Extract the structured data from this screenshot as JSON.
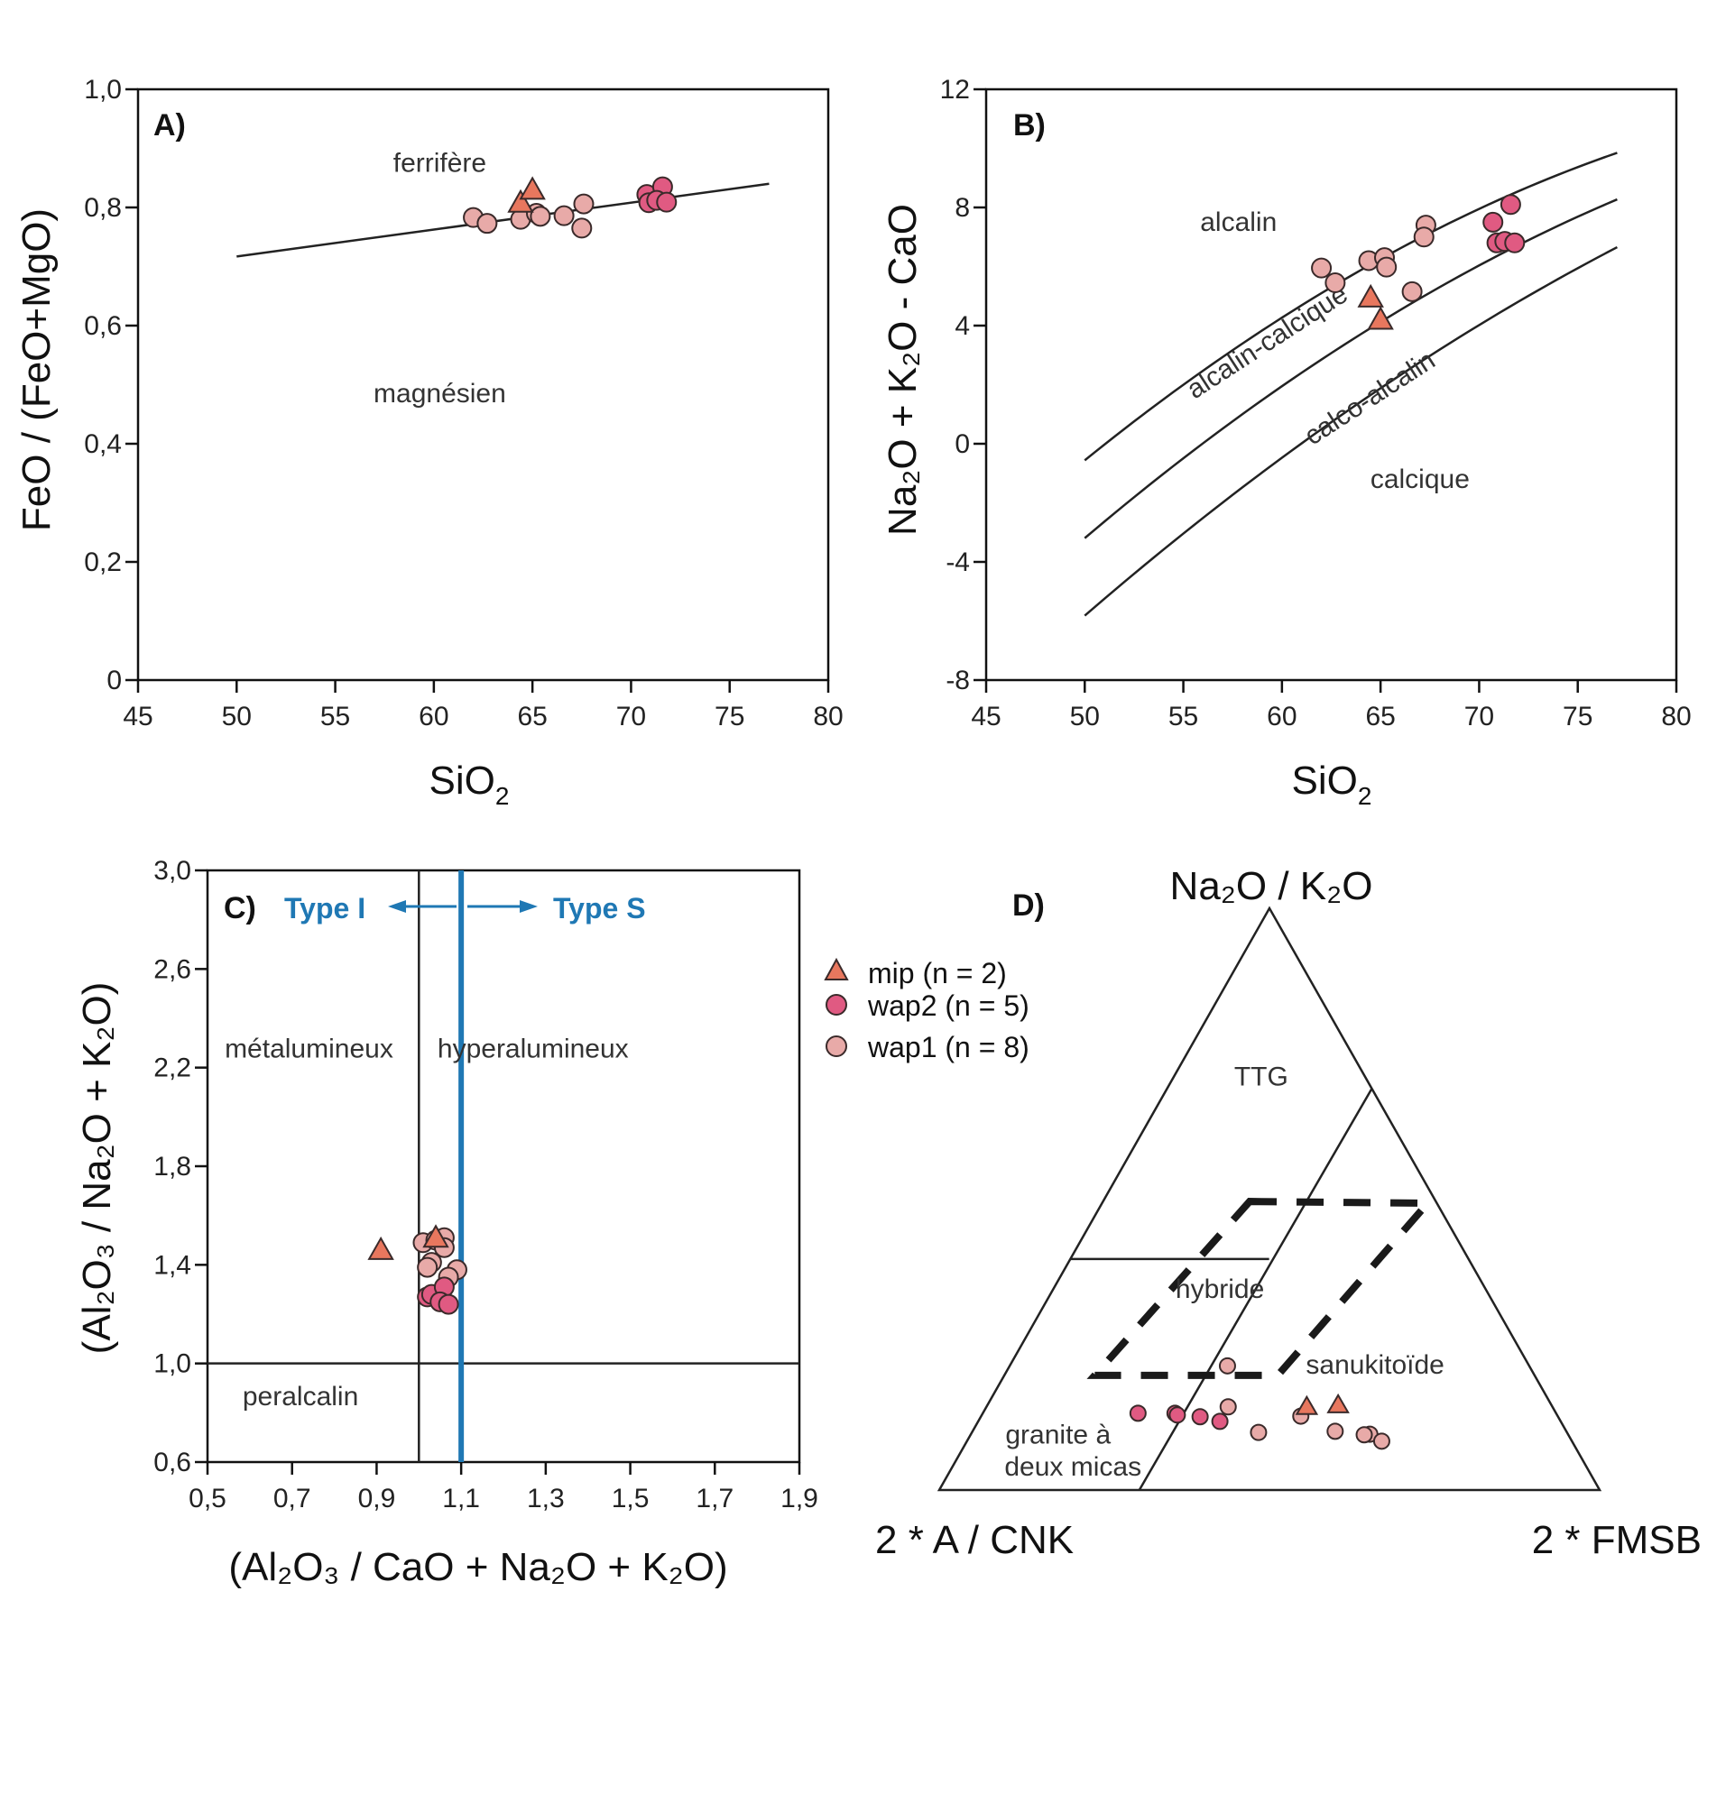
{
  "legend": [
    {
      "key": "mip",
      "label": "mip (n = 2)",
      "marker": "triangle",
      "color": "#e8775e"
    },
    {
      "key": "wap2",
      "label": "wap2 (n = 5)",
      "marker": "circle",
      "color": "#e05a82"
    },
    {
      "key": "wap1",
      "label": "wap1 (n = 8)",
      "marker": "circle",
      "color": "#e8aaa8"
    }
  ],
  "colors": {
    "outline": "#3a2a2a",
    "axis": "#111111",
    "boundary": "#222222",
    "type_divider": "#1f78b4"
  },
  "chart_data": [
    {
      "id": "A",
      "type": "scatter",
      "panel_label": "A)",
      "xlabel": "SiO",
      "xlabel_sub": "2",
      "ylabel": "FeO / (FeO+MgO)",
      "xlim": [
        45,
        80
      ],
      "ylim": [
        0,
        1.0
      ],
      "xticks": [
        45,
        50,
        55,
        60,
        65,
        70,
        75,
        80
      ],
      "xtick_labels": [
        "45",
        "50",
        "55",
        "60",
        "65",
        "70",
        "75",
        "80"
      ],
      "yticks": [
        0,
        0.2,
        0.4,
        0.6,
        0.8,
        1.0
      ],
      "ytick_labels": [
        "0",
        "0,2",
        "0,4",
        "0,6",
        "0,8",
        "1,0"
      ],
      "grid": false,
      "boundaries": [
        {
          "name": "ferroan-magnesian-line",
          "points": [
            [
              50,
              0.717
            ],
            [
              77,
              0.84
            ]
          ]
        }
      ],
      "fields": [
        {
          "label": "ferrifère",
          "x": 60.3,
          "y": 0.86
        },
        {
          "label": "magnésien",
          "x": 60.3,
          "y": 0.47
        }
      ],
      "series": [
        {
          "name": "wap1",
          "points": [
            [
              62.0,
              0.783
            ],
            [
              62.7,
              0.773
            ],
            [
              64.4,
              0.78
            ],
            [
              65.2,
              0.79
            ],
            [
              65.4,
              0.785
            ],
            [
              66.6,
              0.786
            ],
            [
              67.6,
              0.806
            ],
            [
              67.5,
              0.765
            ]
          ]
        },
        {
          "name": "wap2",
          "points": [
            [
              70.8,
              0.822
            ],
            [
              70.9,
              0.808
            ],
            [
              71.6,
              0.835
            ],
            [
              71.3,
              0.812
            ],
            [
              71.8,
              0.809
            ]
          ]
        },
        {
          "name": "mip",
          "points": [
            [
              64.4,
              0.808
            ],
            [
              65.0,
              0.83
            ]
          ]
        }
      ]
    },
    {
      "id": "B",
      "type": "scatter",
      "panel_label": "B)",
      "xlabel": "SiO",
      "xlabel_sub": "2",
      "ylabel": "Na₂O + K₂O - CaO",
      "xlim": [
        45,
        80
      ],
      "ylim": [
        -8,
        12
      ],
      "xticks": [
        45,
        50,
        55,
        60,
        65,
        70,
        75,
        80
      ],
      "xtick_labels": [
        "45",
        "50",
        "55",
        "60",
        "65",
        "70",
        "75",
        "80"
      ],
      "yticks": [
        -8,
        -4,
        0,
        4,
        8,
        12
      ],
      "ytick_labels": [
        "-8",
        "-4",
        "0",
        "4",
        "8",
        "12"
      ],
      "grid": false,
      "boundaries": [
        {
          "name": "alkalic-alkalicalcic",
          "coef": [
            -41.86,
            1.112,
            -0.00572
          ],
          "x_range": [
            50,
            77
          ]
        },
        {
          "name": "alkalicalcic-calcalkalic",
          "coef": [
            -44.72,
            1.094,
            -0.00527
          ],
          "x_range": [
            50,
            77
          ]
        },
        {
          "name": "calcalkalic-calcic",
          "coef": [
            -45.36,
            1.0043,
            -0.00427
          ],
          "x_range": [
            50,
            77
          ]
        }
      ],
      "fields": [
        {
          "label": "alcalin",
          "x": 57.8,
          "y": 7.2,
          "angle": 0
        },
        {
          "label": "alcalin-calcique",
          "x": 59.5,
          "y": 3.2,
          "angle": -33
        },
        {
          "label": "calco-alcalin",
          "x": 64.7,
          "y": 1.3,
          "angle": -33
        },
        {
          "label": "calcique",
          "x": 67.0,
          "y": -1.5,
          "angle": 0
        }
      ],
      "series": [
        {
          "name": "wap1",
          "points": [
            [
              62.0,
              5.95
            ],
            [
              62.7,
              5.45
            ],
            [
              64.4,
              6.2
            ],
            [
              65.2,
              6.3
            ],
            [
              65.3,
              5.98
            ],
            [
              66.6,
              5.15
            ],
            [
              67.3,
              7.4
            ],
            [
              67.2,
              7.0
            ]
          ]
        },
        {
          "name": "wap2",
          "points": [
            [
              70.7,
              7.5
            ],
            [
              71.6,
              8.1
            ],
            [
              70.9,
              6.8
            ],
            [
              71.3,
              6.85
            ],
            [
              71.8,
              6.8
            ]
          ]
        },
        {
          "name": "mip",
          "points": [
            [
              64.5,
              4.95
            ],
            [
              65.0,
              4.2
            ]
          ]
        }
      ]
    },
    {
      "id": "C",
      "type": "scatter",
      "panel_label": "C)",
      "xlabel": "(Al₂O₃ / CaO + Na₂O + K₂O)",
      "ylabel": "(Al₂O₃ / Na₂O + K₂O)",
      "xlim": [
        0.5,
        1.9
      ],
      "ylim": [
        0.6,
        3.0
      ],
      "xticks": [
        0.5,
        0.7,
        0.9,
        1.1,
        1.3,
        1.5,
        1.7,
        1.9
      ],
      "xtick_labels": [
        "0,5",
        "0,7",
        "0,9",
        "1,1",
        "1,3",
        "1,5",
        "1,7",
        "1,9"
      ],
      "yticks": [
        0.6,
        1.0,
        1.4,
        1.8,
        2.2,
        2.6,
        3.0
      ],
      "ytick_labels": [
        "0,6",
        "1,0",
        "1,4",
        "1,8",
        "2,2",
        "2,6",
        "3,0"
      ],
      "grid": false,
      "boundaries": [
        {
          "name": "acnk-1",
          "orientation": "vertical",
          "value": 1.0
        },
        {
          "name": "ank-1",
          "orientation": "horizontal",
          "value": 1.0
        },
        {
          "name": "type-divider",
          "orientation": "vertical",
          "value": 1.1,
          "color": "#1f78b4"
        }
      ],
      "type_labels": {
        "left": "Type I",
        "right": "Type S"
      },
      "fields": [
        {
          "label": "métalumineux",
          "x": 0.74,
          "y": 2.24
        },
        {
          "label": "hyperalumineux",
          "x": 1.27,
          "y": 2.24
        },
        {
          "label": "peralcalin",
          "x": 0.72,
          "y": 0.83
        }
      ],
      "series": [
        {
          "name": "wap1",
          "points": [
            [
              1.01,
              1.49
            ],
            [
              1.04,
              1.5
            ],
            [
              1.06,
              1.51
            ],
            [
              1.06,
              1.47
            ],
            [
              1.03,
              1.41
            ],
            [
              1.02,
              1.39
            ],
            [
              1.09,
              1.38
            ],
            [
              1.07,
              1.35
            ]
          ]
        },
        {
          "name": "wap2",
          "points": [
            [
              1.02,
              1.27
            ],
            [
              1.03,
              1.28
            ],
            [
              1.06,
              1.31
            ],
            [
              1.05,
              1.25
            ],
            [
              1.07,
              1.24
            ]
          ]
        },
        {
          "name": "mip",
          "points": [
            [
              0.91,
              1.46
            ],
            [
              1.04,
              1.51
            ]
          ]
        }
      ]
    },
    {
      "id": "D",
      "type": "scatter",
      "subtype": "ternary",
      "panel_label": "D)",
      "vertices": {
        "top": "Na₂O / K₂O",
        "left": "2 * A / CNK",
        "right": "2 * FMSB"
      },
      "coordinate_order": [
        "top",
        "left",
        "right"
      ],
      "grid": false,
      "boundaries": [
        {
          "name": "ttg-lower",
          "points": [
            [
              0.397,
              0.603,
              0.0
            ],
            [
              0.397,
              0.302,
              0.301
            ]
          ]
        },
        {
          "name": "sanukitoid-boundary",
          "points": [
            [
              0.0,
              0.697,
              0.303
            ],
            [
              0.69,
              0.0,
              0.31
            ]
          ]
        }
      ],
      "dashed_field": {
        "name": "hybrid-field",
        "points": [
          [
            0.496,
            0.282,
            0.222
          ],
          [
            0.493,
            0.014,
            0.493
          ],
          [
            0.197,
            0.389,
            0.414
          ],
          [
            0.197,
            0.666,
            0.137
          ]
        ]
      },
      "fields": [
        {
          "label": "TTG",
          "t": 0.695,
          "l": 0.165,
          "r": 0.14
        },
        {
          "label": "hybride",
          "t": 0.33,
          "l": 0.41,
          "r": 0.26
        },
        {
          "label": "sanukitoïde",
          "t": 0.2,
          "l": 0.24,
          "r": 0.56
        },
        {
          "label": "granite à",
          "t": 0.08,
          "l": 0.78,
          "r": 0.14
        },
        {
          "label": "deux micas",
          "t": 0.025,
          "l": 0.785,
          "r": 0.19
        }
      ],
      "series": [
        {
          "name": "wap1",
          "points": [
            [
              0.216,
              0.458,
              0.327
            ],
            [
              0.143,
              0.491,
              0.366
            ],
            [
              0.099,
              0.467,
              0.434
            ],
            [
              0.127,
              0.389,
              0.484
            ],
            [
              0.101,
              0.35,
              0.549
            ],
            [
              0.096,
              0.3,
              0.604
            ],
            [
              0.095,
              0.309,
              0.596
            ],
            [
              0.084,
              0.288,
              0.628
            ]
          ]
        },
        {
          "name": "wap2",
          "points": [
            [
              0.132,
              0.633,
              0.235
            ],
            [
              0.132,
              0.577,
              0.291
            ],
            [
              0.129,
              0.575,
              0.296
            ],
            [
              0.126,
              0.542,
              0.332
            ],
            [
              0.118,
              0.516,
              0.366
            ]
          ]
        },
        {
          "name": "mip",
          "points": [
            [
              0.143,
              0.372,
              0.485
            ],
            [
              0.146,
              0.323,
              0.531
            ]
          ]
        }
      ]
    }
  ]
}
